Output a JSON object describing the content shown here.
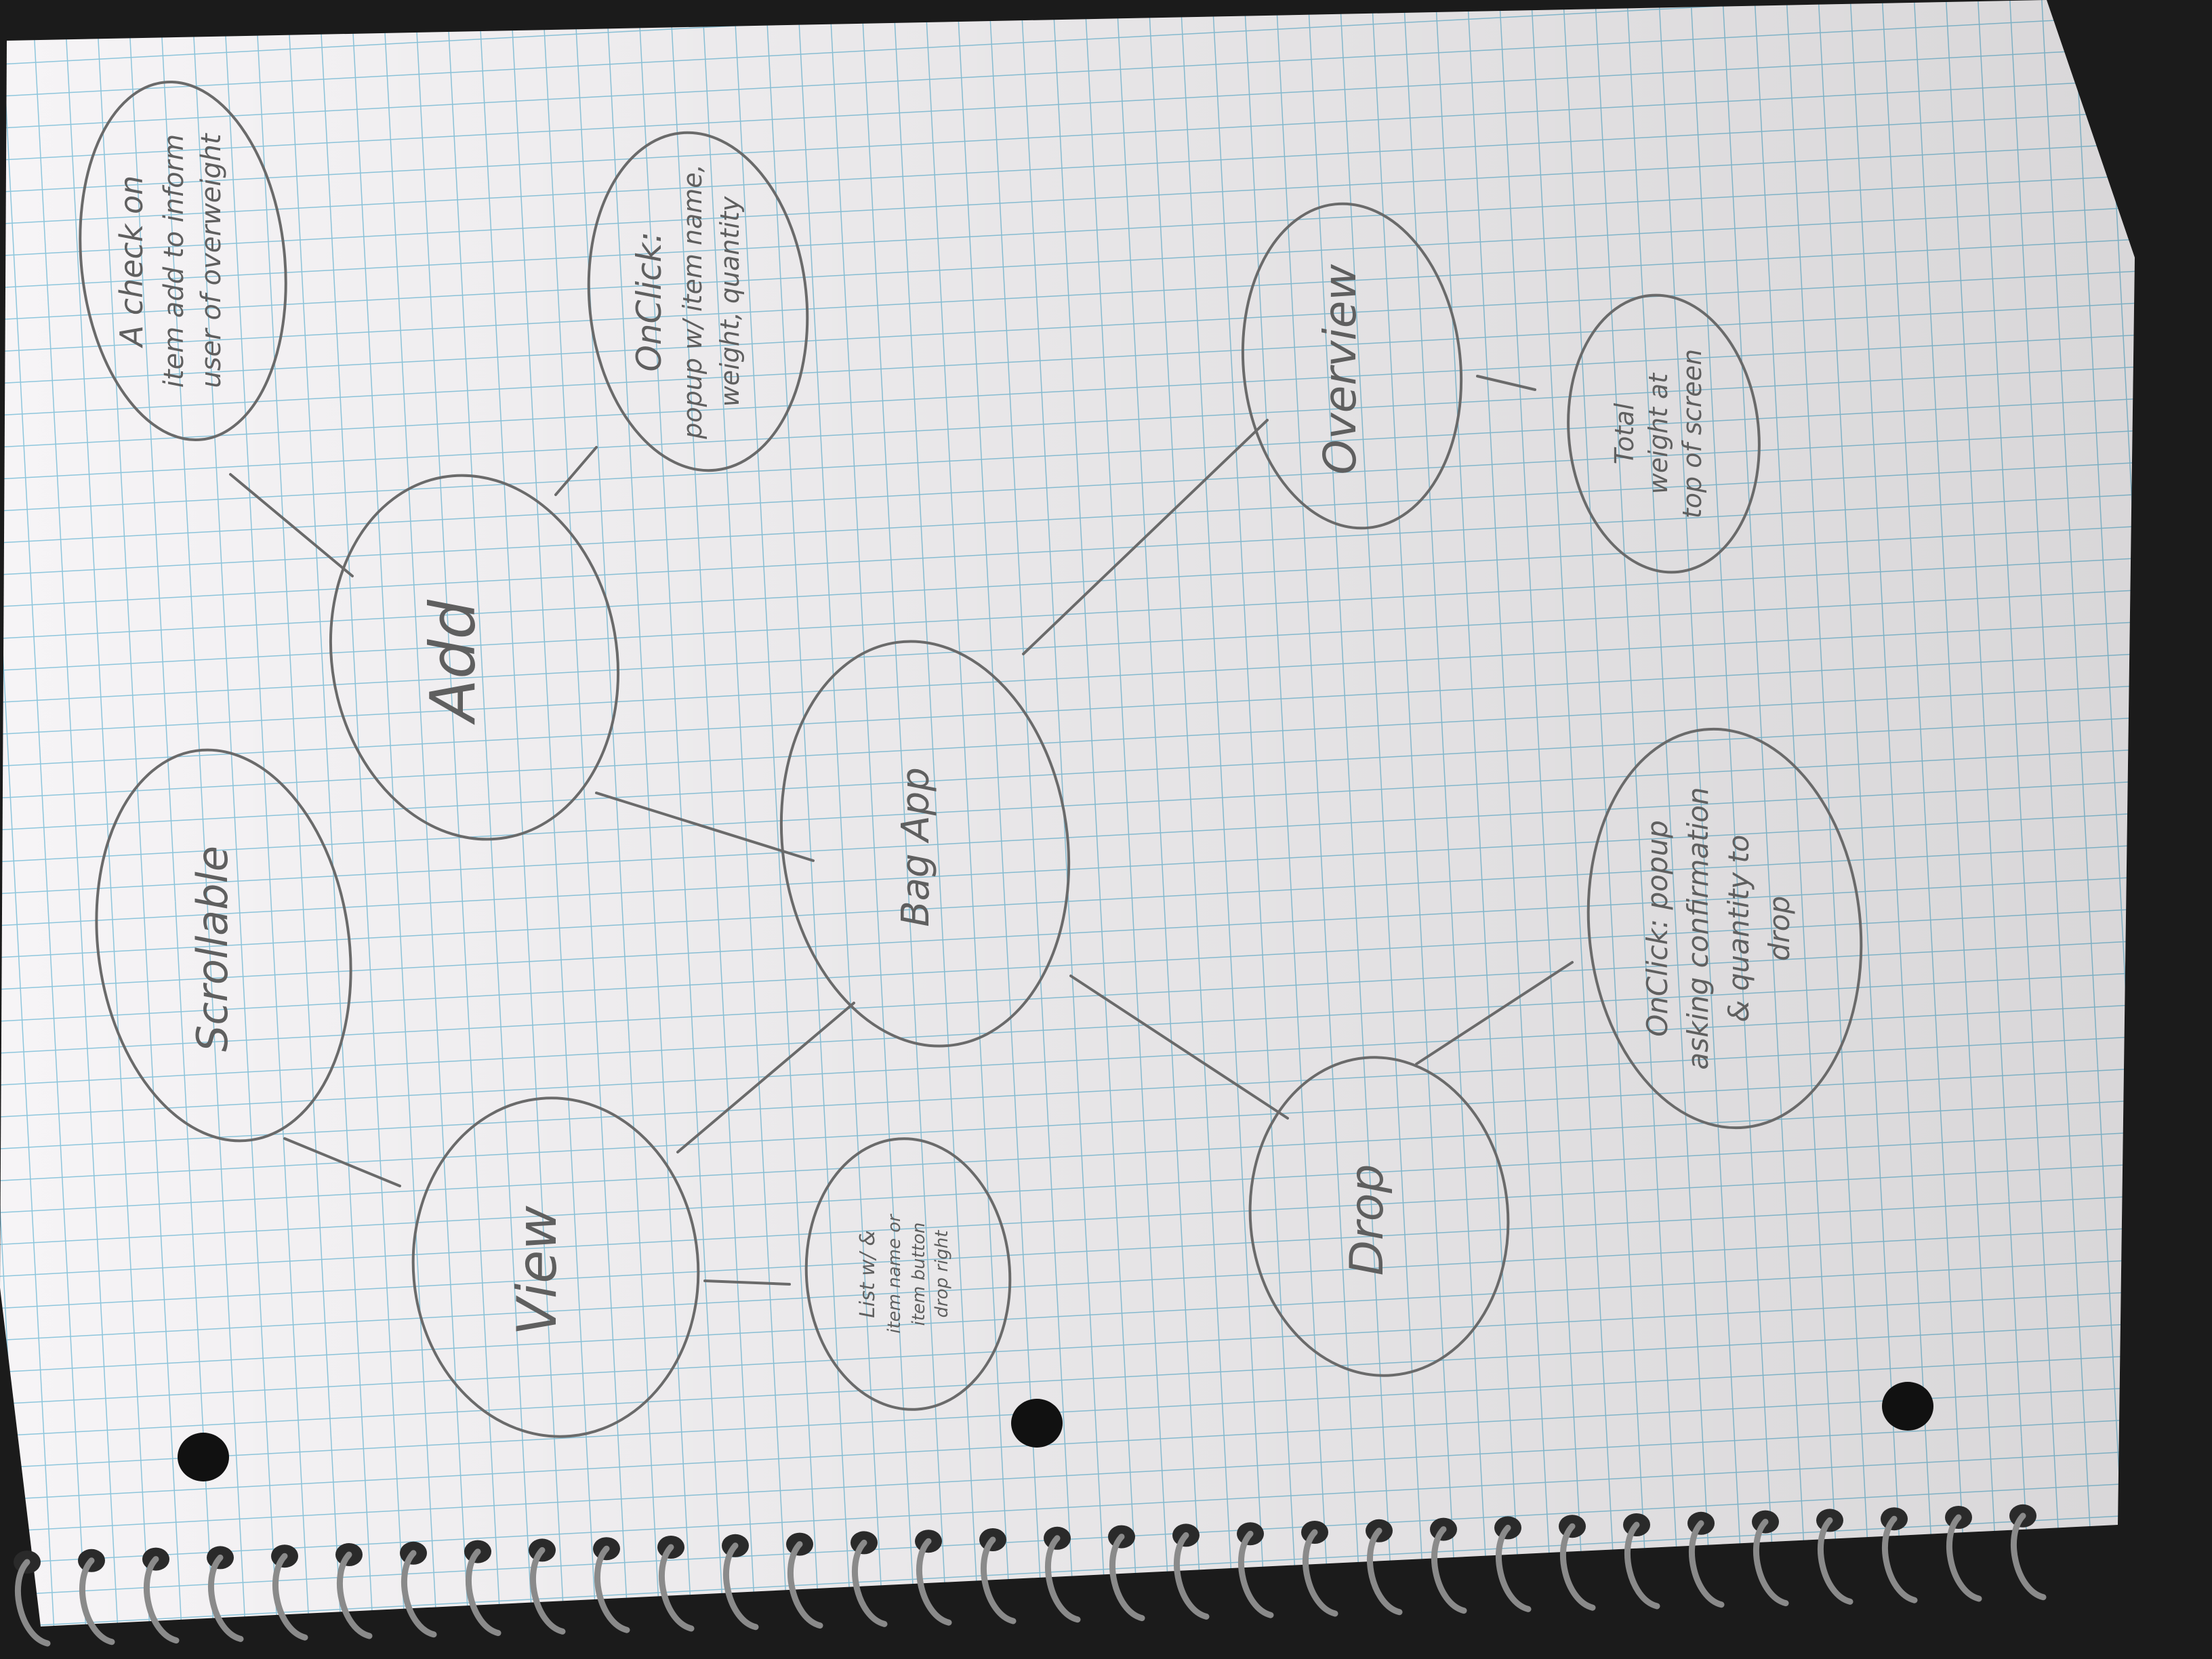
{
  "notebook": {
    "paper_color": "#f6f4f6",
    "grid_color": "#8ec6dc",
    "pencil_color": "#5f5f5f",
    "desk_color": "#1b1b1b"
  },
  "mindmap": {
    "center": "Bag App",
    "nodes": [
      {
        "id": "add",
        "label": "Add"
      },
      {
        "id": "view",
        "label": "View"
      },
      {
        "id": "drop",
        "label": "Drop"
      },
      {
        "id": "overview",
        "label": "Overview"
      },
      {
        "id": "scrollable",
        "label": "Scrollable"
      },
      {
        "id": "add-check",
        "lines": [
          "A check on",
          "item add to inform",
          "user of overweight"
        ]
      },
      {
        "id": "add-onclick",
        "lines": [
          "OnClick:",
          "popup w/ item name,",
          "weight, quantity"
        ]
      },
      {
        "id": "overview-total",
        "lines": [
          "Total",
          "weight at",
          "top of screen"
        ]
      },
      {
        "id": "drop-onclick",
        "lines": [
          "OnClick: popup",
          "asking confirmation",
          "& quantity to",
          "drop"
        ]
      },
      {
        "id": "view-list",
        "lines": [
          "List w/ &",
          "item name or",
          "item button",
          "drop right"
        ]
      }
    ]
  }
}
